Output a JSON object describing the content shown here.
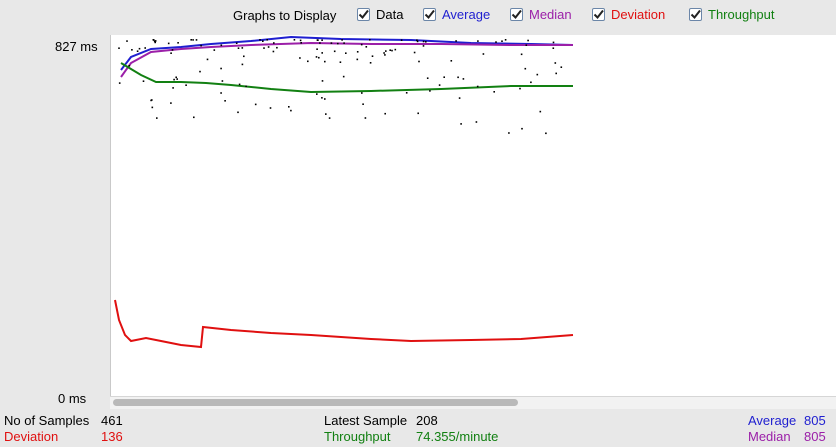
{
  "toolbar": {
    "title": "Graphs to Display",
    "options": [
      {
        "label": "Data",
        "checked": true,
        "color": "#000000"
      },
      {
        "label": "Average",
        "checked": true,
        "color": "#1f1fd0"
      },
      {
        "label": "Median",
        "checked": true,
        "color": "#9b1fa8"
      },
      {
        "label": "Deviation",
        "checked": true,
        "color": "#e01010"
      },
      {
        "label": "Throughput",
        "checked": true,
        "color": "#128012"
      }
    ]
  },
  "y_axis": {
    "max_label": "827 ms",
    "min_label": "0 ms"
  },
  "stats": {
    "samples_label": "No of Samples",
    "samples_value": "461",
    "deviation_label": "Deviation",
    "deviation_value": "136",
    "latest_label": "Latest Sample",
    "latest_value": "208",
    "throughput_label": "Throughput",
    "throughput_value": "74.355/minute",
    "average_label": "Average",
    "average_value": "805",
    "median_label": "Median",
    "median_value": "805"
  },
  "colors": {
    "average": "#1f1fd0",
    "median": "#9b1fa8",
    "deviation": "#e01010",
    "throughput": "#128012",
    "data": "#000000"
  }
}
